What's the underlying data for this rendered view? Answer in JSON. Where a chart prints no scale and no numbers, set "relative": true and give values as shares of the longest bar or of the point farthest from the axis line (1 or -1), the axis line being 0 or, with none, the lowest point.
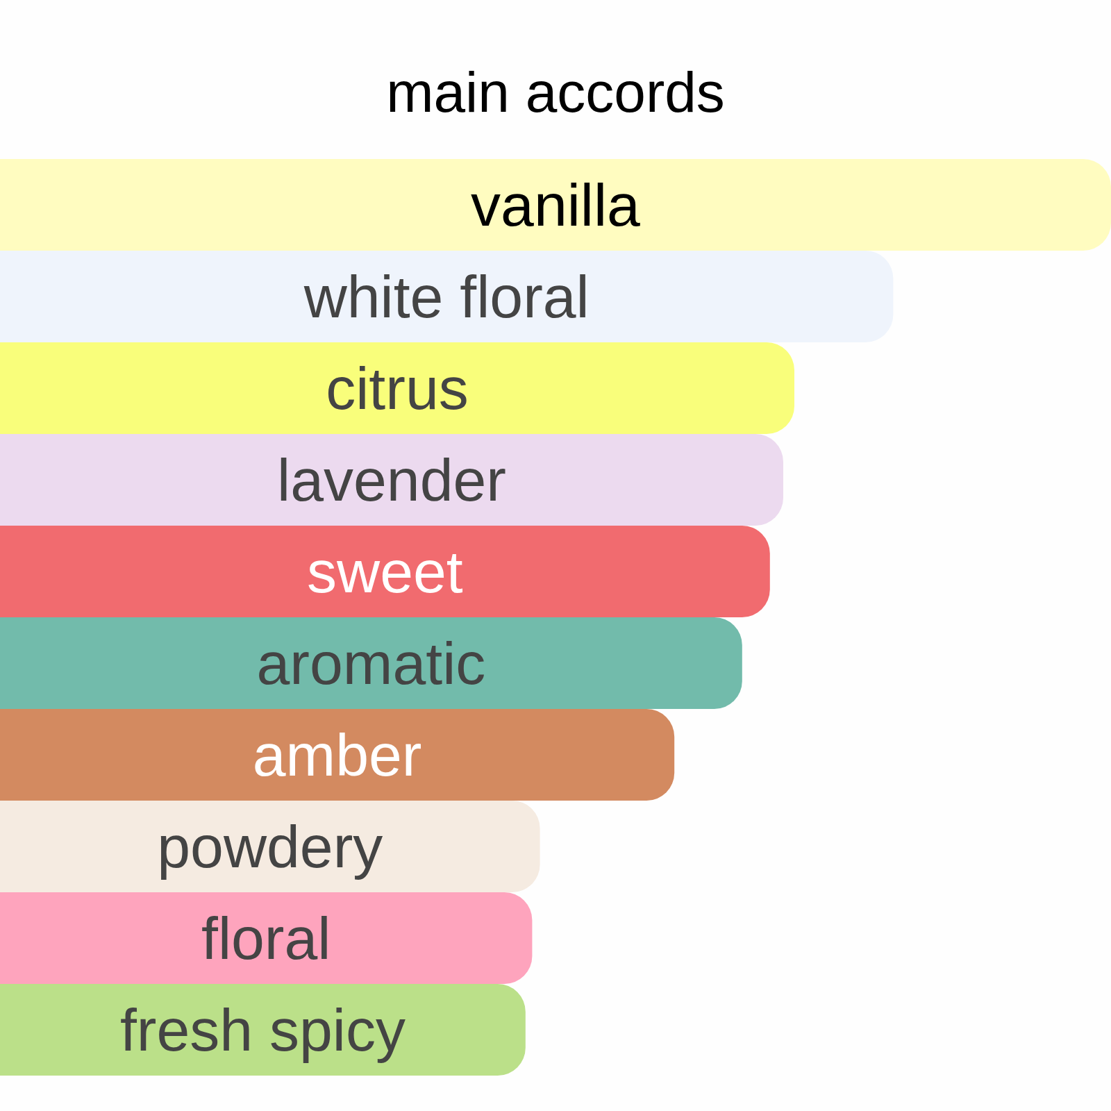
{
  "chart_data": {
    "type": "bar",
    "orientation": "horizontal",
    "relative": true,
    "title": "main accords",
    "categories": [
      "vanilla",
      "white floral",
      "citrus",
      "lavender",
      "sweet",
      "aromatic",
      "amber",
      "powdery",
      "floral",
      "fresh spicy"
    ],
    "values": [
      1,
      0.804,
      0.715,
      0.705,
      0.693,
      0.668,
      0.607,
      0.486,
      0.479,
      0.473
    ],
    "colors": [
      "#fffcc0",
      "#eff4fc",
      "#f9fe7b",
      "#ecdaef",
      "#f16b6f",
      "#72bbab",
      "#d38a60",
      "#f5ebe1",
      "#fea4bd",
      "#bbe089"
    ]
  }
}
